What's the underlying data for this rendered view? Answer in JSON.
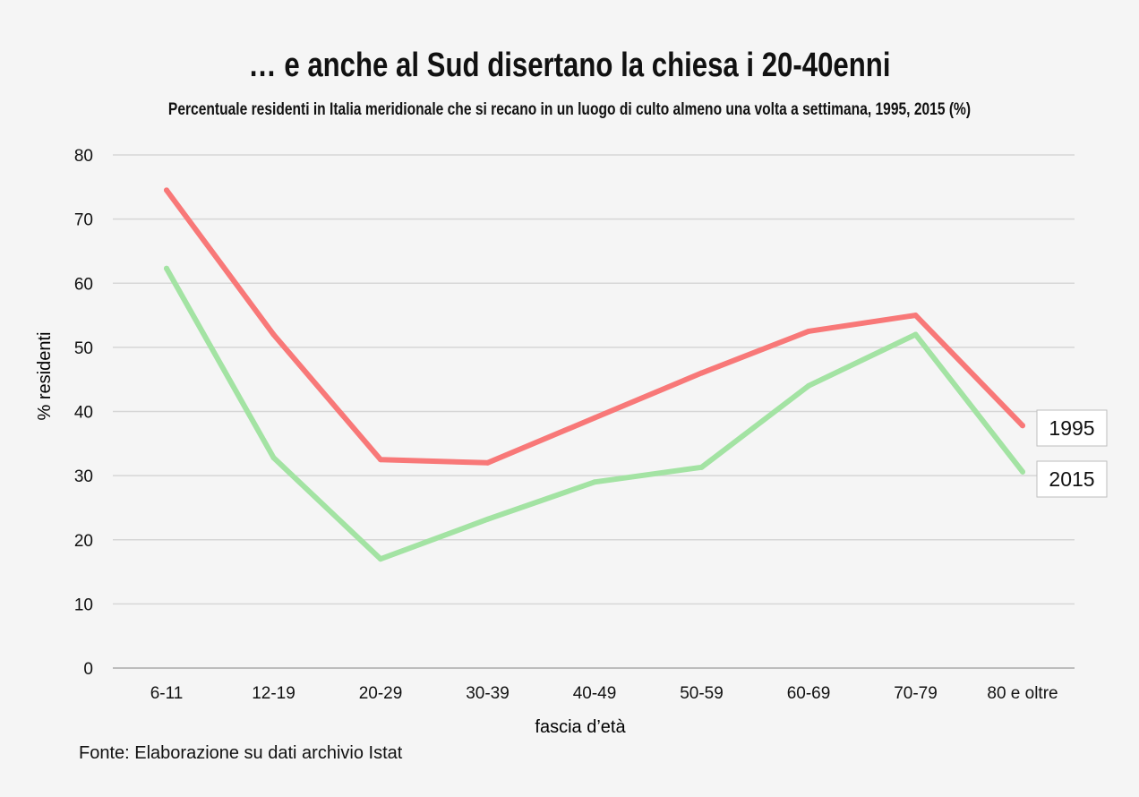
{
  "chart_data": {
    "type": "line",
    "title": "… e anche al Sud disertano la chiesa i 20-40enni",
    "subtitle": "Percentuale residenti in Italia meridionale che si recano in un luogo di culto almeno una volta a settimana, 1995, 2015 (%)",
    "xlabel": "fascia d’età",
    "ylabel": "% residenti",
    "categories": [
      "6-11",
      "12-19",
      "20-29",
      "30-39",
      "40-49",
      "50-59",
      "60-69",
      "70-79",
      "80 e oltre"
    ],
    "ylim": [
      0,
      80
    ],
    "yticks": [
      0,
      10,
      20,
      30,
      40,
      50,
      60,
      70,
      80
    ],
    "grid": true,
    "legend": "direct labels at line ends (right)",
    "series": [
      {
        "name": "1995",
        "color": "#f87878",
        "values": [
          74.5,
          52,
          32.5,
          32,
          39,
          46,
          52.5,
          55,
          37.8
        ]
      },
      {
        "name": "2015",
        "color": "#a3e3a3",
        "values": [
          62.3,
          32.8,
          17,
          23.2,
          29,
          31.3,
          44,
          52,
          30.6
        ]
      }
    ],
    "source": "Fonte: Elaborazione su dati archivio Istat"
  }
}
